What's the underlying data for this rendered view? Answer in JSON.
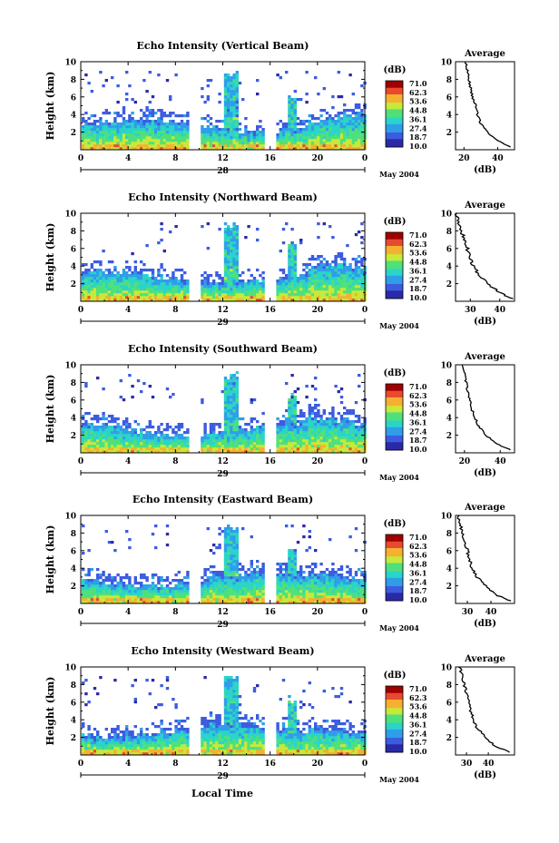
{
  "figure": {
    "date_label": "May 2004",
    "x_title": "Local Time",
    "colorbar_unit": "(dB)",
    "colorbar_levels": [
      "71.0",
      "62.3",
      "53.6",
      "44.8",
      "36.1",
      "27.4",
      "18.7",
      "10.0"
    ],
    "colorbar_colors": [
      "#2a2aa8",
      "#3c5ce0",
      "#2f9ee8",
      "#2ad4c8",
      "#4fe07a",
      "#c8e83a",
      "#f5b030",
      "#e84a30",
      "#a00000"
    ],
    "ylabel": "Height (km)",
    "avg_title": "Average",
    "avg_xlabel": "(dB)"
  },
  "chart_data": [
    {
      "type": "heatmap",
      "title": "Echo Intensity (Vertical Beam)",
      "ylabel": "Height (km)",
      "x_ticks": [
        "0",
        "4",
        "8",
        "12",
        "16",
        "20",
        "0"
      ],
      "day_label": "28",
      "ylim": [
        0,
        10
      ],
      "y_ticks": [
        "2",
        "4",
        "6",
        "8",
        "10"
      ],
      "xlim_hours": [
        0,
        24
      ],
      "gaps_hours": [
        [
          9.0,
          10.0
        ],
        [
          15.3,
          16.3
        ]
      ],
      "average": {
        "xlim": [
          15,
          50
        ],
        "x_ticks": [
          "20",
          "40"
        ],
        "heights": [
          0.3,
          1,
          2,
          3,
          4,
          5,
          6,
          7,
          8,
          9,
          10
        ],
        "values": [
          48,
          40,
          34,
          30,
          28,
          27,
          25,
          24,
          23,
          22,
          21
        ]
      }
    },
    {
      "type": "heatmap",
      "title": "Echo Intensity (Northward Beam)",
      "ylabel": "Height (km)",
      "x_ticks": [
        "0",
        "4",
        "8",
        "12",
        "16",
        "20",
        "0"
      ],
      "day_label": "29",
      "ylim": [
        0,
        10
      ],
      "y_ticks": [
        "2",
        "4",
        "6",
        "8",
        "10"
      ],
      "xlim_hours": [
        0,
        24
      ],
      "gaps_hours": [
        [
          9.0,
          10.0
        ],
        [
          15.3,
          16.3
        ]
      ],
      "average": {
        "xlim": [
          25,
          45
        ],
        "x_ticks": [
          "30",
          "40"
        ],
        "heights": [
          0.3,
          1,
          2,
          3,
          4,
          5,
          6,
          7,
          8,
          9,
          10
        ],
        "values": [
          44,
          40,
          36,
          33,
          31,
          30,
          29,
          28,
          27,
          26,
          25
        ]
      }
    },
    {
      "type": "heatmap",
      "title": "Echo Intensity (Southward Beam)",
      "ylabel": "Height (km)",
      "x_ticks": [
        "0",
        "4",
        "8",
        "12",
        "16",
        "20",
        "0"
      ],
      "day_label": "29",
      "ylim": [
        0,
        10
      ],
      "y_ticks": [
        "2",
        "4",
        "6",
        "8",
        "10"
      ],
      "xlim_hours": [
        0,
        24
      ],
      "gaps_hours": [
        [
          9.0,
          10.0
        ],
        [
          15.3,
          16.3
        ]
      ],
      "average": {
        "xlim": [
          15,
          48
        ],
        "x_ticks": [
          "20",
          "40"
        ],
        "heights": [
          0.3,
          1,
          2,
          3,
          4,
          5,
          6,
          7,
          8,
          9,
          10
        ],
        "values": [
          46,
          38,
          32,
          28,
          26,
          24,
          23,
          22,
          21,
          20,
          19
        ]
      }
    },
    {
      "type": "heatmap",
      "title": "Echo Intensity (Eastward Beam)",
      "ylabel": "Height (km)",
      "x_ticks": [
        "0",
        "4",
        "8",
        "12",
        "16",
        "20",
        "0"
      ],
      "day_label": "29",
      "ylim": [
        0,
        10
      ],
      "y_ticks": [
        "2",
        "4",
        "6",
        "8",
        "10"
      ],
      "xlim_hours": [
        0,
        24
      ],
      "gaps_hours": [
        [
          9.0,
          10.0
        ],
        [
          15.3,
          16.3
        ]
      ],
      "average": {
        "xlim": [
          25,
          50
        ],
        "x_ticks": [
          "30",
          "40"
        ],
        "heights": [
          0.3,
          1,
          2,
          3,
          4,
          5,
          6,
          7,
          8,
          9,
          10
        ],
        "values": [
          48,
          42,
          38,
          34,
          32,
          31,
          30,
          29,
          28,
          27,
          26
        ]
      }
    },
    {
      "type": "heatmap",
      "title": "Echo Intensity (Westward Beam)",
      "ylabel": "Height (km)",
      "x_ticks": [
        "0",
        "4",
        "8",
        "12",
        "16",
        "20",
        "0"
      ],
      "day_label": "29",
      "ylim": [
        0,
        10
      ],
      "y_ticks": [
        "2",
        "4",
        "6",
        "8",
        "10"
      ],
      "xlim_hours": [
        0,
        24
      ],
      "gaps_hours": [
        [
          9.0,
          10.0
        ],
        [
          15.3,
          16.3
        ]
      ],
      "average": {
        "xlim": [
          25,
          52
        ],
        "x_ticks": [
          "30",
          "40"
        ],
        "heights": [
          0.3,
          1,
          2,
          3,
          4,
          5,
          6,
          7,
          8,
          9,
          10
        ],
        "values": [
          50,
          43,
          39,
          35,
          33,
          32,
          31,
          30,
          29,
          28,
          27
        ]
      }
    }
  ]
}
